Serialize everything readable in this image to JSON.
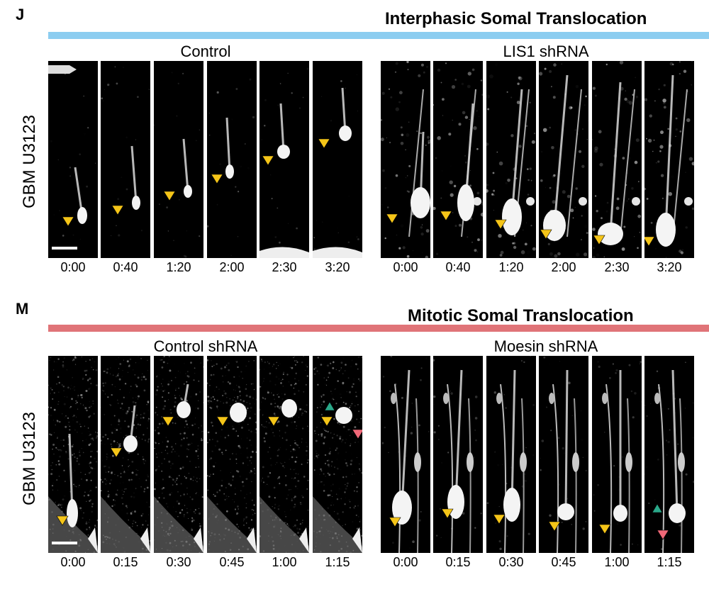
{
  "panel_j": {
    "letter": "J",
    "title": "Interphasic Somal Translocation",
    "bar_color": "#8ccdf0",
    "row_label": "GBM U3123",
    "left_group": "Control",
    "right_group": "LIS1 shRNA",
    "left_times": [
      "0:00",
      "0:40",
      "1:20",
      "2:00",
      "2:30",
      "3:20"
    ],
    "right_times": [
      "0:00",
      "0:40",
      "1:20",
      "2:00",
      "2:30",
      "3:20"
    ]
  },
  "panel_m": {
    "letter": "M",
    "title": "Mitotic Somal Translocation",
    "bar_color": "#e07478",
    "row_label": "GBM U3123",
    "left_group": "Control shRNA",
    "right_group": "Moesin shRNA",
    "left_times": [
      "0:00",
      "0:15",
      "0:30",
      "0:45",
      "1:00",
      "1:15"
    ],
    "right_times": [
      "0:00",
      "0:15",
      "0:30",
      "0:45",
      "1:00",
      "1:15"
    ]
  },
  "colors": {
    "arrow_yellow": "#f5c518",
    "arrow_green": "#2aa889",
    "arrow_pink": "#f06878"
  }
}
